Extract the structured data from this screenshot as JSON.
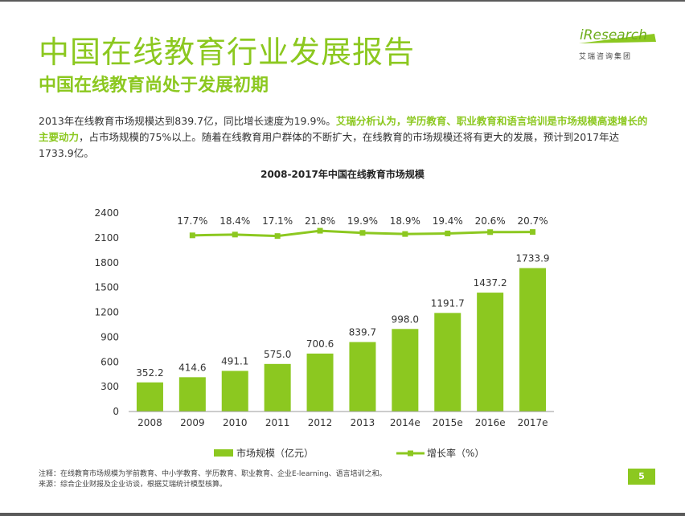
{
  "header": {
    "main_title": "中国在线教育行业发展报告",
    "sub_title": "中国在线教育尚处于发展初期",
    "logo_word": "iResearch",
    "logo_cn": "艾瑞咨询集团"
  },
  "paragraph": {
    "part1": "2013年在线教育市场规模达到839.7亿，同比增长速度为19.9%。",
    "highlight": "艾瑞分析认为，学历教育、职业教育和语言培训是市场规模高速增长的主要动力",
    "part2": "，占市场规模的75%以上。随着在线教育用户群体的不断扩大，在线教育的市场规模还将有更大的发展，预计到2017年达1733.9亿。"
  },
  "chart_data": {
    "type": "bar",
    "title": "2008-2017年中国在线教育市场规模",
    "categories": [
      "2008",
      "2009",
      "2010",
      "2011",
      "2012",
      "2013",
      "2014e",
      "2015e",
      "2016e",
      "2017e"
    ],
    "series": [
      {
        "name": "市场规模（亿元）",
        "type": "bar",
        "values": [
          352.2,
          414.6,
          491.1,
          575.0,
          700.6,
          839.7,
          998.0,
          1191.7,
          1437.2,
          1733.9
        ],
        "labels": [
          "352.2",
          "414.6",
          "491.1",
          "575.0",
          "700.6",
          "839.7",
          "998.0",
          "1191.7",
          "1437.2",
          "1733.9"
        ]
      },
      {
        "name": "增长率（%）",
        "type": "line",
        "values": [
          null,
          17.7,
          18.4,
          17.1,
          21.8,
          19.9,
          18.9,
          19.4,
          20.6,
          20.7
        ],
        "labels": [
          "",
          "17.7%",
          "18.4%",
          "17.1%",
          "21.8%",
          "19.9%",
          "18.9%",
          "19.4%",
          "20.6%",
          "20.7%"
        ]
      }
    ],
    "yticks": [
      "0",
      "300",
      "600",
      "900",
      "1200",
      "1500",
      "1800",
      "2100",
      "2400"
    ],
    "ylim": [
      0,
      2400
    ],
    "grid": false,
    "legend": "bottom",
    "color": "#8cc820"
  },
  "footer": {
    "note1": "注释：在线教育市场规模为学前教育、中小学教育、学历教育、职业教育、企业E-learning、语言培训之和。",
    "note2": "来源：综合企业财报及企业访谈，根据艾瑞统计模型核算。",
    "page": "5"
  }
}
